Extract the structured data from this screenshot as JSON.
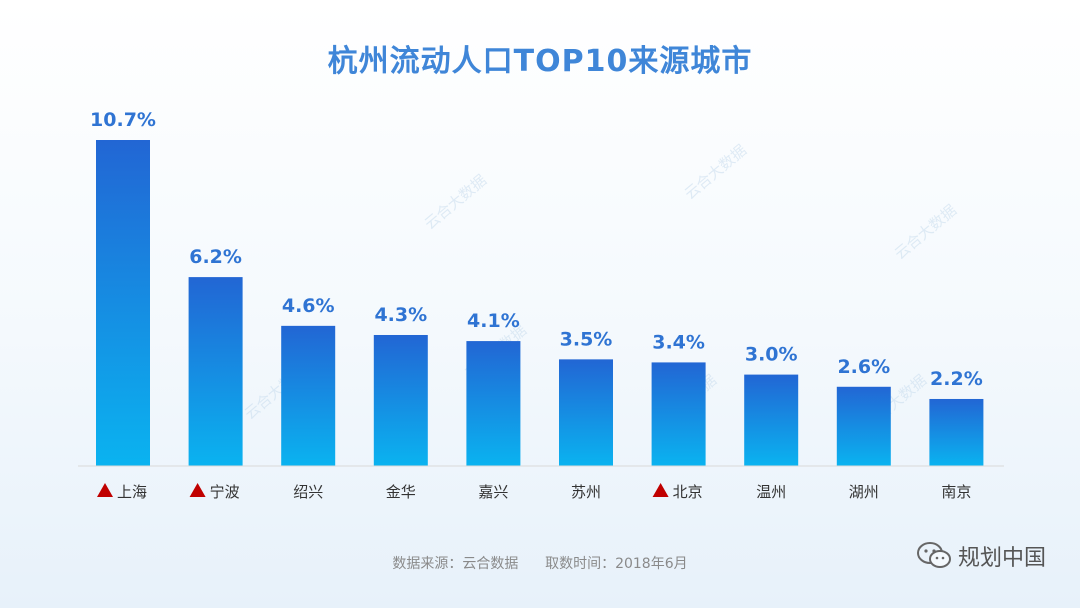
{
  "title": "杭州流动人口TOP10来源城市",
  "chart_data": {
    "type": "bar",
    "title": "杭州流动人口TOP10来源城市",
    "categories": [
      "上海",
      "宁波",
      "绍兴",
      "金华",
      "嘉兴",
      "苏州",
      "北京",
      "温州",
      "湖州",
      "南京"
    ],
    "values": [
      10.7,
      6.2,
      4.6,
      4.3,
      4.1,
      3.5,
      3.4,
      3.0,
      2.6,
      2.2
    ],
    "value_labels": [
      "10.7%",
      "6.2%",
      "4.6%",
      "4.3%",
      "4.1%",
      "3.5%",
      "3.4%",
      "3.0%",
      "2.6%",
      "2.2%"
    ],
    "markers": [
      true,
      true,
      false,
      false,
      false,
      false,
      true,
      false,
      false,
      false
    ],
    "unit": "%",
    "ylim": [
      0,
      10.7
    ],
    "grid": false,
    "bar_gradient": [
      "#2266d4",
      "#0ab3f0"
    ],
    "xlabel": "",
    "ylabel": ""
  },
  "watermark": "云合大数据",
  "source_note": "数据来源：云合数据      取数时间：2018年6月",
  "brand": {
    "name": "规划中国",
    "icon": "wechat-icon"
  },
  "colors": {
    "title": "#3f86d8",
    "label": "#2f74d3",
    "marker": "#c00000"
  }
}
